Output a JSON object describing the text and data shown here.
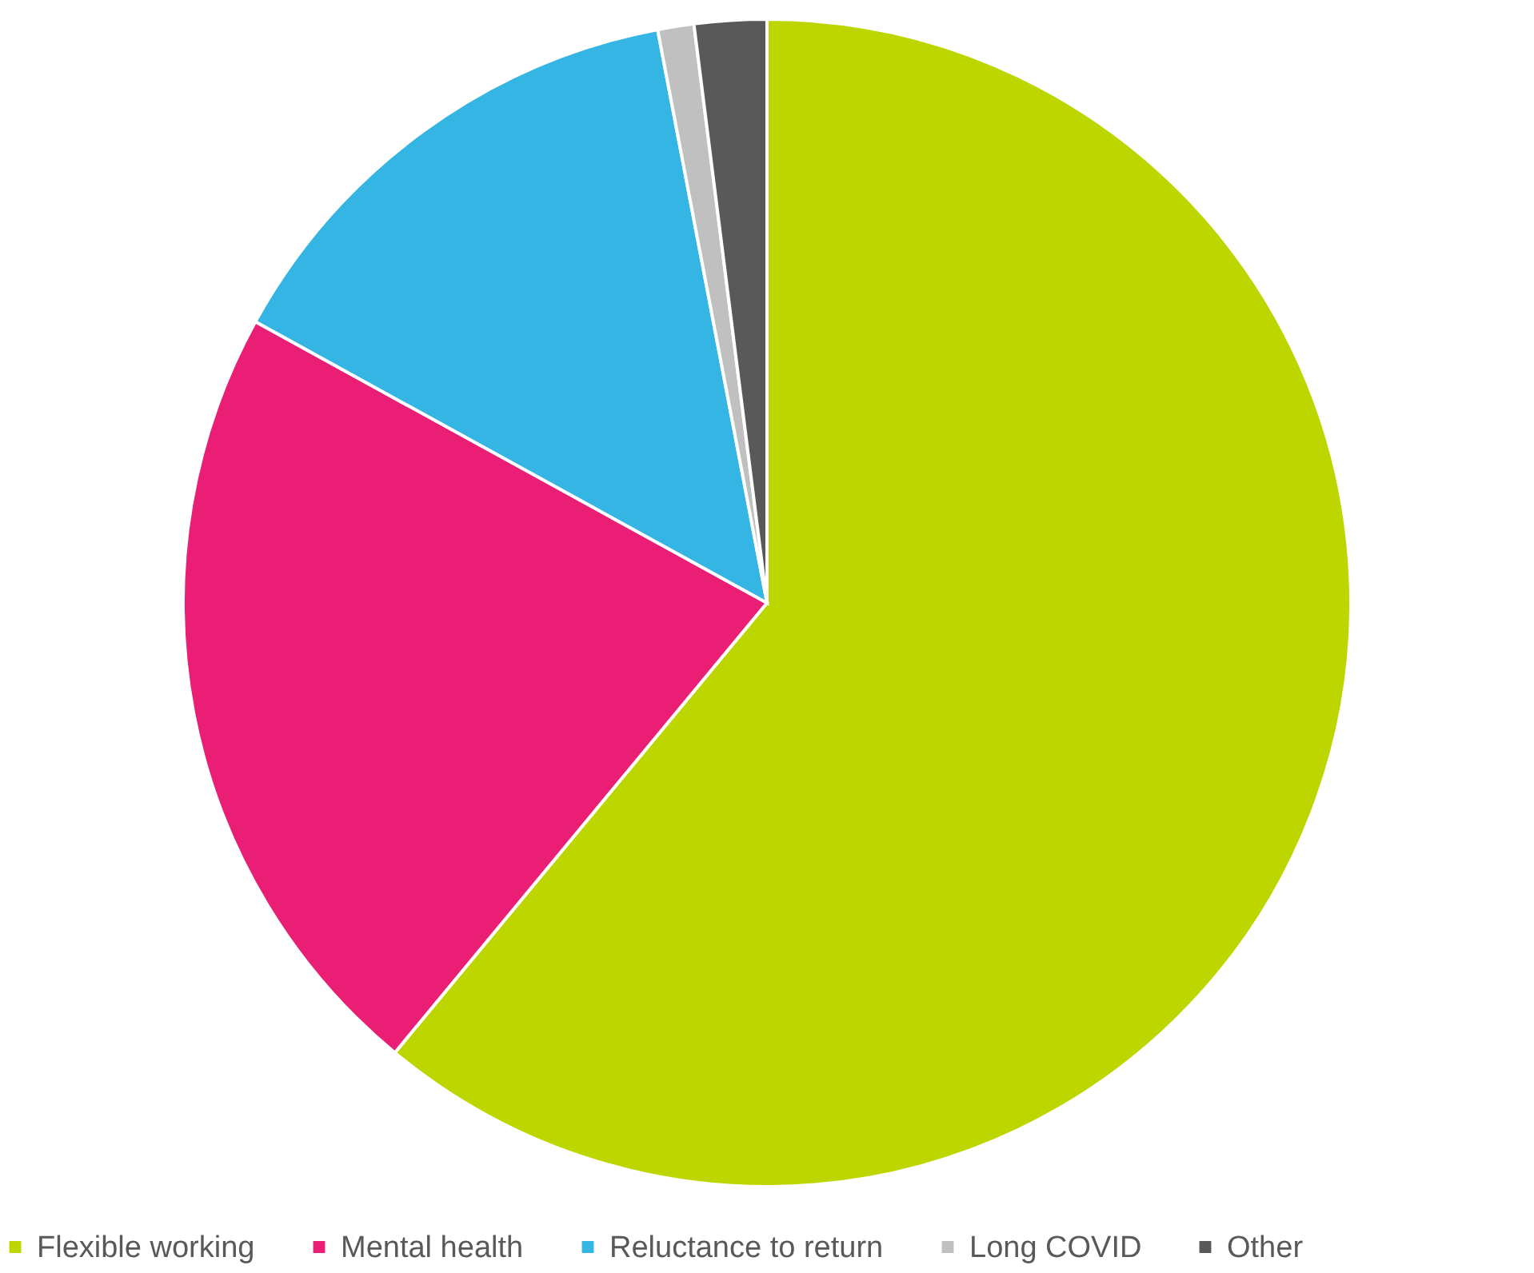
{
  "chart_data": {
    "type": "pie",
    "categories": [
      "Flexible working",
      "Mental health",
      "Reluctance to return",
      "Long COVID",
      "Other"
    ],
    "values": [
      61,
      22,
      14,
      1,
      2
    ],
    "colors": [
      "#bed600",
      "#e91e74",
      "#35b5e3",
      "#c0c0c0",
      "#595959"
    ],
    "legend": "bottom"
  }
}
